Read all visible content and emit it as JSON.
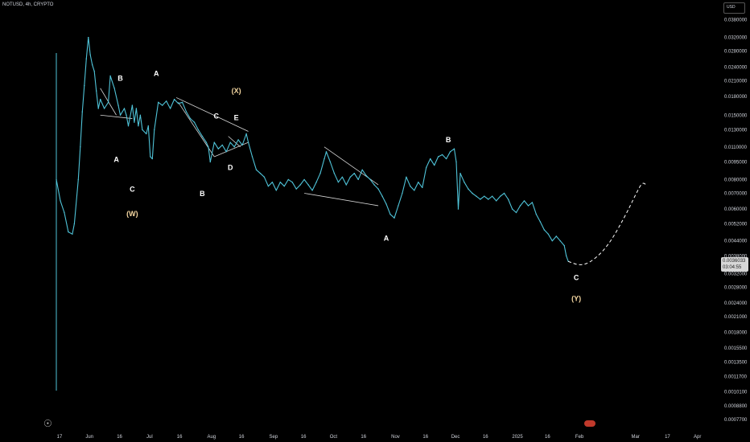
{
  "header": {
    "ticker": "NOTUSD, 4h, CRYPTO",
    "currency": "USD"
  },
  "price_tag": {
    "price": "0.0036033",
    "countdown": "03:04:55"
  },
  "colors": {
    "price_line": "#4fc3d8",
    "background": "#000000",
    "annotation": "#d8d8d8",
    "wave_white": "#ffffff",
    "wave_orange": "#f5d7a1"
  },
  "icons": {
    "logo": "tradingview-logo-icon",
    "flag": "flag-icon"
  },
  "chart_data": {
    "type": "line",
    "title": "",
    "xlabel": "",
    "ylabel": "",
    "y_scale": "log",
    "grid": false,
    "ylim": [
      0.00069,
      0.044
    ],
    "xlim": [
      -4,
      286
    ],
    "y_ticks": [
      "0.0380000",
      "0.0320000",
      "0.0280000",
      "0.0240000",
      "0.0210000",
      "0.0180000",
      "0.0150000",
      "0.0130000",
      "0.0110000",
      "0.0095000",
      "0.0080000",
      "0.0070000",
      "0.0060000",
      "0.0052000",
      "0.0044000",
      "0.0038000",
      "0.0032000",
      "0.0028000",
      "0.0024000",
      "0.0021000",
      "0.0018000",
      "0.0015500",
      "0.0013500",
      "0.0011700",
      "0.0010100",
      "0.0008800",
      "0.0007700"
    ],
    "x_ticks": [
      {
        "label": "17",
        "day": 0
      },
      {
        "label": "Jun",
        "day": 15
      },
      {
        "label": "16",
        "day": 30
      },
      {
        "label": "Jul",
        "day": 45
      },
      {
        "label": "16",
        "day": 60
      },
      {
        "label": "Aug",
        "day": 76
      },
      {
        "label": "16",
        "day": 91
      },
      {
        "label": "Sep",
        "day": 107
      },
      {
        "label": "16",
        "day": 122
      },
      {
        "label": "Oct",
        "day": 137
      },
      {
        "label": "16",
        "day": 152
      },
      {
        "label": "Nov",
        "day": 168
      },
      {
        "label": "16",
        "day": 183
      },
      {
        "label": "Dec",
        "day": 198
      },
      {
        "label": "16",
        "day": 213
      },
      {
        "label": "2025",
        "day": 229
      },
      {
        "label": "16",
        "day": 244
      },
      {
        "label": "Feb",
        "day": 260
      },
      {
        "label": "Mar",
        "day": 288
      },
      {
        "label": "17",
        "day": 304
      },
      {
        "label": "Apr",
        "day": 319
      }
    ],
    "series": [
      {
        "points": [
          [
            0,
            0.008
          ],
          [
            2,
            0.0065
          ],
          [
            4,
            0.0058
          ],
          [
            6,
            0.0048
          ],
          [
            8,
            0.0047
          ],
          [
            9,
            0.0052
          ],
          [
            11,
            0.008
          ],
          [
            12,
            0.011
          ],
          [
            13,
            0.0155
          ],
          [
            14,
            0.02
          ],
          [
            15,
            0.026
          ],
          [
            16,
            0.032
          ],
          [
            17,
            0.027
          ],
          [
            18,
            0.0245
          ],
          [
            19,
            0.023
          ],
          [
            20,
            0.019
          ],
          [
            21,
            0.016
          ],
          [
            22,
            0.0175
          ],
          [
            24,
            0.016
          ],
          [
            26,
            0.017
          ],
          [
            27,
            0.022
          ],
          [
            29,
            0.0195
          ],
          [
            31,
            0.0165
          ],
          [
            32,
            0.015
          ],
          [
            34,
            0.016
          ],
          [
            35,
            0.015
          ],
          [
            36,
            0.0135
          ],
          [
            38,
            0.0165
          ],
          [
            39,
            0.014
          ],
          [
            40,
            0.016
          ],
          [
            41,
            0.0135
          ],
          [
            42,
            0.015
          ],
          [
            43,
            0.013
          ],
          [
            45,
            0.0125
          ],
          [
            46,
            0.0135
          ],
          [
            47,
            0.01
          ],
          [
            48,
            0.0098
          ],
          [
            49,
            0.013
          ],
          [
            51,
            0.017
          ],
          [
            53,
            0.0165
          ],
          [
            55,
            0.0172
          ],
          [
            57,
            0.016
          ],
          [
            59,
            0.0175
          ],
          [
            61,
            0.0168
          ],
          [
            63,
            0.017
          ],
          [
            65,
            0.0155
          ],
          [
            67,
            0.0145
          ],
          [
            69,
            0.014
          ],
          [
            71,
            0.013
          ],
          [
            73,
            0.0122
          ],
          [
            75,
            0.0115
          ],
          [
            76,
            0.011
          ],
          [
            77,
            0.0095
          ],
          [
            79,
            0.0115
          ],
          [
            81,
            0.0108
          ],
          [
            83,
            0.0112
          ],
          [
            85,
            0.0105
          ],
          [
            87,
            0.0115
          ],
          [
            89,
            0.011
          ],
          [
            91,
            0.0118
          ],
          [
            93,
            0.0112
          ],
          [
            95,
            0.0125
          ],
          [
            96,
            0.0115
          ],
          [
            98,
            0.01
          ],
          [
            100,
            0.0088
          ],
          [
            102,
            0.0085
          ],
          [
            104,
            0.0082
          ],
          [
            106,
            0.0075
          ],
          [
            108,
            0.0078
          ],
          [
            110,
            0.0072
          ],
          [
            112,
            0.0078
          ],
          [
            114,
            0.0075
          ],
          [
            116,
            0.008
          ],
          [
            118,
            0.0078
          ],
          [
            120,
            0.0073
          ],
          [
            122,
            0.0076
          ],
          [
            124,
            0.008
          ],
          [
            126,
            0.0076
          ],
          [
            128,
            0.0072
          ],
          [
            130,
            0.0078
          ],
          [
            132,
            0.0085
          ],
          [
            134,
            0.0098
          ],
          [
            135,
            0.0105
          ],
          [
            137,
            0.0095
          ],
          [
            139,
            0.0085
          ],
          [
            141,
            0.0078
          ],
          [
            143,
            0.0082
          ],
          [
            145,
            0.0076
          ],
          [
            147,
            0.0082
          ],
          [
            149,
            0.0085
          ],
          [
            151,
            0.008
          ],
          [
            153,
            0.0088
          ],
          [
            155,
            0.0083
          ],
          [
            157,
            0.008
          ],
          [
            159,
            0.0076
          ],
          [
            161,
            0.0073
          ],
          [
            163,
            0.0068
          ],
          [
            165,
            0.0063
          ],
          [
            167,
            0.0057
          ],
          [
            169,
            0.0055
          ],
          [
            171,
            0.0062
          ],
          [
            173,
            0.007
          ],
          [
            175,
            0.0082
          ],
          [
            177,
            0.0075
          ],
          [
            179,
            0.0072
          ],
          [
            181,
            0.0078
          ],
          [
            183,
            0.0074
          ],
          [
            185,
            0.009
          ],
          [
            187,
            0.0098
          ],
          [
            189,
            0.0092
          ],
          [
            191,
            0.01
          ],
          [
            193,
            0.0102
          ],
          [
            195,
            0.0098
          ],
          [
            197,
            0.0105
          ],
          [
            199,
            0.0108
          ],
          [
            200,
            0.0095
          ],
          [
            201,
            0.006
          ],
          [
            202,
            0.0085
          ],
          [
            204,
            0.0078
          ],
          [
            206,
            0.0073
          ],
          [
            208,
            0.007
          ],
          [
            210,
            0.0068
          ],
          [
            212,
            0.0066
          ],
          [
            214,
            0.0068
          ],
          [
            216,
            0.0066
          ],
          [
            218,
            0.0068
          ],
          [
            220,
            0.0065
          ],
          [
            222,
            0.0068
          ],
          [
            224,
            0.007
          ],
          [
            226,
            0.0066
          ],
          [
            228,
            0.006
          ],
          [
            230,
            0.0058
          ],
          [
            232,
            0.0062
          ],
          [
            234,
            0.0065
          ],
          [
            236,
            0.0062
          ],
          [
            238,
            0.0064
          ],
          [
            240,
            0.0057
          ],
          [
            242,
            0.0053
          ],
          [
            244,
            0.0049
          ],
          [
            246,
            0.0047
          ],
          [
            248,
            0.0044
          ],
          [
            250,
            0.0046
          ],
          [
            252,
            0.0044
          ],
          [
            254,
            0.0042
          ],
          [
            255,
            0.0038
          ],
          [
            256,
            0.0036
          ]
        ]
      }
    ],
    "forecast": [
      [
        256,
        0.0036
      ],
      [
        262,
        0.00345
      ],
      [
        268,
        0.0036
      ],
      [
        276,
        0.0042
      ],
      [
        284,
        0.0055
      ],
      [
        290,
        0.007
      ],
      [
        293,
        0.0078
      ],
      [
        295,
        0.0076
      ]
    ],
    "annotations": {
      "volume_spike": {
        "day": 0,
        "high": 0.0275,
        "low": 0.00102
      },
      "trendlines": [
        [
          [
            22,
            0.0195
          ],
          [
            30,
            0.015
          ]
        ],
        [
          [
            60,
            0.0178
          ],
          [
            96,
            0.0128
          ]
        ],
        [
          [
            61,
            0.017
          ],
          [
            79,
            0.01
          ]
        ],
        [
          [
            79,
            0.01
          ],
          [
            96,
            0.0115
          ]
        ],
        [
          [
            86,
            0.0122
          ],
          [
            92,
            0.011
          ]
        ],
        [
          [
            134,
            0.011
          ],
          [
            161,
            0.0076
          ]
        ],
        [
          [
            124,
            0.007
          ],
          [
            161,
            0.0062
          ]
        ],
        [
          [
            22,
            0.015
          ],
          [
            38,
            0.0145
          ]
        ]
      ],
      "wave_labels": [
        {
          "text": "B",
          "day": 32,
          "price": 0.021,
          "style": "white"
        },
        {
          "text": "A",
          "day": 30,
          "price": 0.0095,
          "style": "white"
        },
        {
          "text": "C",
          "day": 38,
          "price": 0.0071,
          "style": "white"
        },
        {
          "text": "(W)",
          "day": 38,
          "price": 0.0056,
          "style": "orange"
        },
        {
          "text": "A",
          "day": 50,
          "price": 0.022,
          "style": "white"
        },
        {
          "text": "C",
          "day": 80,
          "price": 0.0145,
          "style": "white"
        },
        {
          "text": "(X)",
          "day": 90,
          "price": 0.0186,
          "style": "orange"
        },
        {
          "text": "E",
          "day": 90,
          "price": 0.0143,
          "style": "white"
        },
        {
          "text": "D",
          "day": 87,
          "price": 0.0088,
          "style": "white"
        },
        {
          "text": "B",
          "day": 73,
          "price": 0.0068,
          "style": "white"
        },
        {
          "text": "B",
          "day": 196,
          "price": 0.0115,
          "style": "white"
        },
        {
          "text": "A",
          "day": 165,
          "price": 0.0044,
          "style": "white"
        },
        {
          "text": "C",
          "day": 260,
          "price": 0.003,
          "style": "white"
        },
        {
          "text": "(Y)",
          "day": 260,
          "price": 0.00245,
          "style": "orange"
        }
      ]
    }
  }
}
